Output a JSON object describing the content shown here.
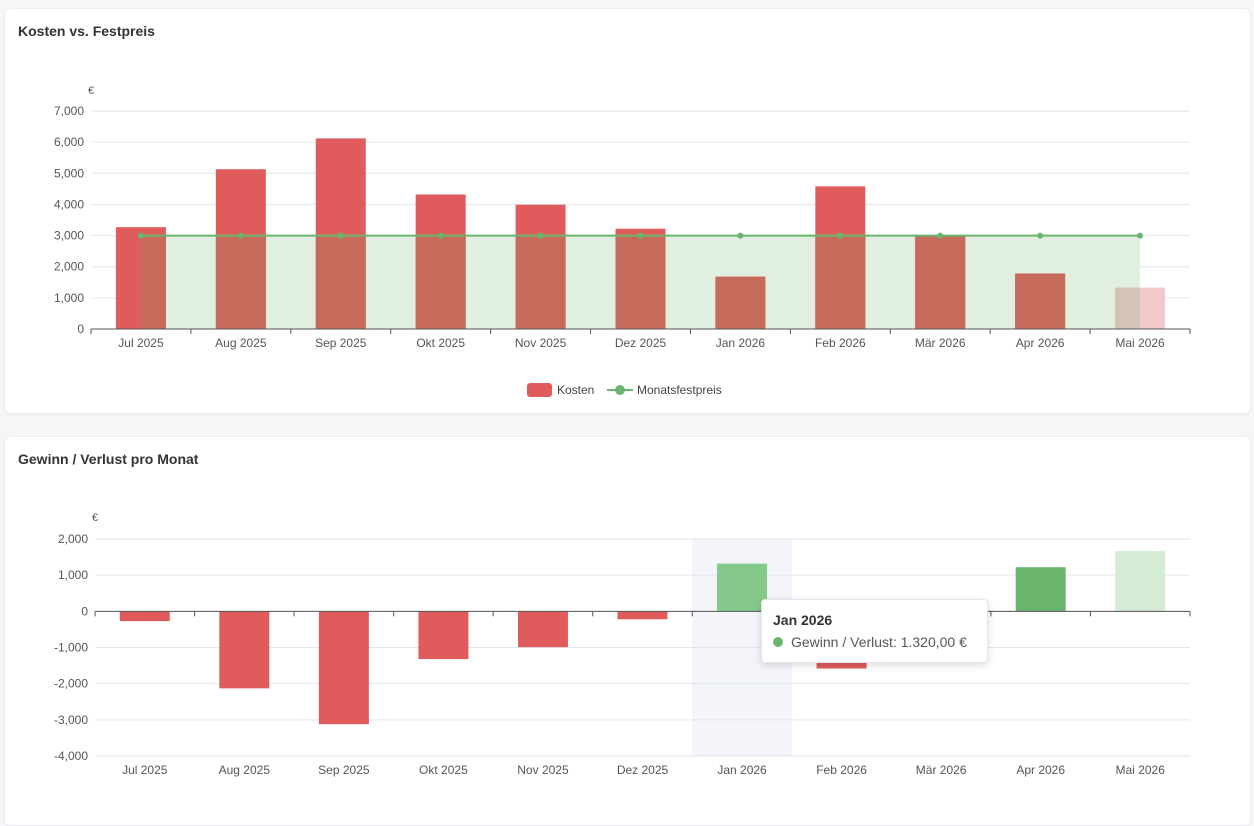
{
  "colors": {
    "cost": "#e05c5c",
    "cost_overlay": "#c66b5c",
    "cost_light": "#f2c9c9",
    "fixed_line": "#6ab56e",
    "fixed_area": "#e1efe0",
    "area_cost_overlay": "#d5c3b8",
    "profit": "#6cb56f",
    "profit_highlight": "#85c98a",
    "profit_light": "#d4ebd4",
    "loss": "#e05c5c",
    "grid": "#e3e6ee",
    "axis": "#555555",
    "hover_band": "#f3f5fb"
  },
  "chart1": {
    "title": "Kosten vs. Festpreis",
    "unit": "€",
    "legend": {
      "cost": "Kosten",
      "fixed": "Monatsfestpreis"
    }
  },
  "chart2": {
    "title": "Gewinn / Verlust pro Monat",
    "unit": "€"
  },
  "tooltip": {
    "title": "Jan 2026",
    "series": "Gewinn / Verlust",
    "value": "1.320,00 €",
    "separator": ": "
  },
  "chart_data": [
    {
      "type": "bar",
      "title": "Kosten vs. Festpreis",
      "ylabel": "€",
      "categories": [
        "Jul 2025",
        "Aug 2025",
        "Sep 2025",
        "Okt 2025",
        "Nov 2025",
        "Dez 2025",
        "Jan 2026",
        "Feb 2026",
        "Mär 2026",
        "Apr 2026",
        "Mai 2026"
      ],
      "ylim": [
        0,
        7000
      ],
      "yticks": [
        0,
        1000,
        2000,
        3000,
        4000,
        5000,
        6000,
        7000
      ],
      "ytick_labels": [
        "0",
        "1,000",
        "2,000",
        "3,000",
        "4,000",
        "5,000",
        "6,000",
        "7,000"
      ],
      "series": [
        {
          "name": "Kosten",
          "type": "bar",
          "values": [
            3270,
            5130,
            6120,
            4320,
            3990,
            3220,
            1680,
            4580,
            3000,
            1780,
            1330
          ]
        },
        {
          "name": "Monatsfestpreis",
          "type": "line-area",
          "values": [
            3000,
            3000,
            3000,
            3000,
            3000,
            3000,
            3000,
            3000,
            3000,
            3000,
            3000
          ]
        }
      ],
      "legend": "bottom-center",
      "grid": true
    },
    {
      "type": "bar",
      "title": "Gewinn / Verlust pro Monat",
      "ylabel": "€",
      "categories": [
        "Jul 2025",
        "Aug 2025",
        "Sep 2025",
        "Okt 2025",
        "Nov 2025",
        "Dez 2025",
        "Jan 2026",
        "Feb 2026",
        "Mär 2026",
        "Apr 2026",
        "Mai 2026"
      ],
      "ylim": [
        -4000,
        2000
      ],
      "yticks": [
        -4000,
        -3000,
        -2000,
        -1000,
        0,
        1000,
        2000
      ],
      "ytick_labels": [
        "-4,000",
        "-3,000",
        "-2,000",
        "-1,000",
        "0",
        "1,000",
        "2,000"
      ],
      "series": [
        {
          "name": "Gewinn / Verlust",
          "values": [
            -270,
            -2130,
            -3120,
            -1320,
            -990,
            -220,
            1320,
            -1580,
            0,
            1220,
            1670
          ]
        }
      ],
      "highlighted_category": "Jan 2026",
      "grid": true
    }
  ]
}
